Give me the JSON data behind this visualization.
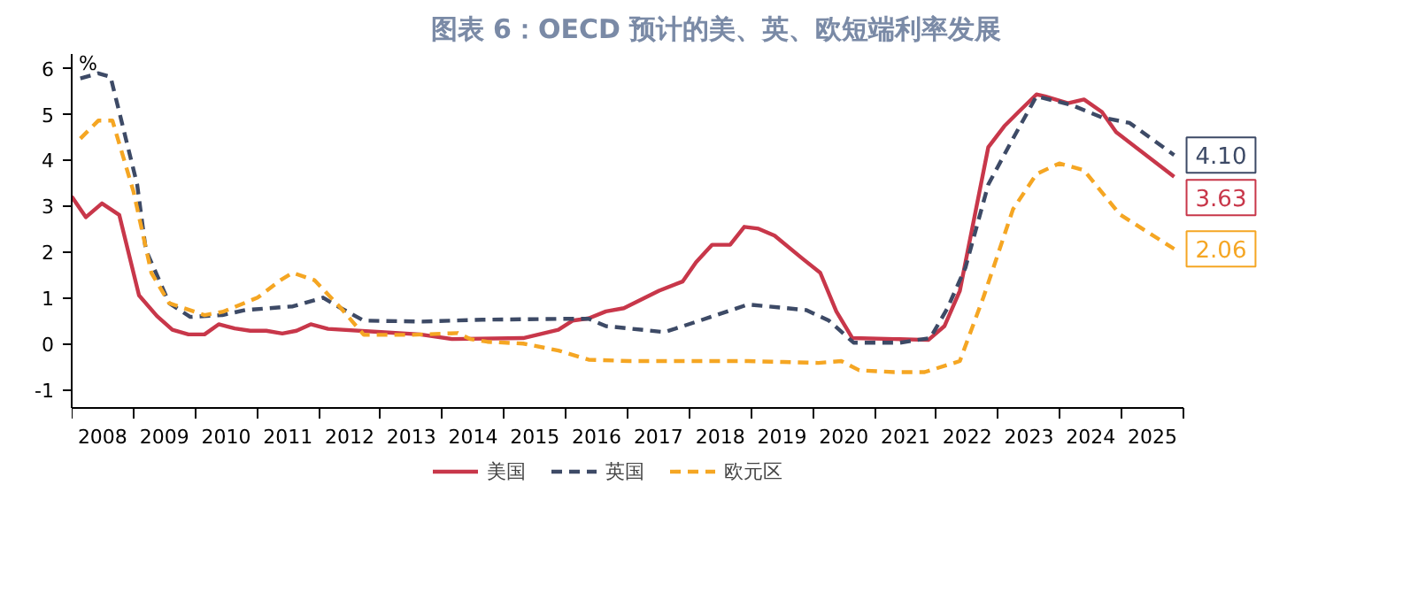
{
  "chart_data": {
    "type": "line",
    "title": "图表 6：OECD 预计的美、英、欧短端利率发展",
    "ylabel": "%",
    "xlim": [
      2008,
      2026
    ],
    "ylim": [
      -1.4,
      6.3
    ],
    "yticks": [
      -1,
      0,
      1,
      2,
      3,
      4,
      5,
      6
    ],
    "xticks": [
      {
        "value": 2008.5,
        "label": "2008"
      },
      {
        "value": 2009.5,
        "label": "2009"
      },
      {
        "value": 2010.5,
        "label": "2010"
      },
      {
        "value": 2011.5,
        "label": "2011"
      },
      {
        "value": 2012.5,
        "label": "2012"
      },
      {
        "value": 2013.5,
        "label": "2013"
      },
      {
        "value": 2014.5,
        "label": "2014"
      },
      {
        "value": 2015.5,
        "label": "2015"
      },
      {
        "value": 2016.5,
        "label": "2016"
      },
      {
        "value": 2017.5,
        "label": "2017"
      },
      {
        "value": 2018.5,
        "label": "2018"
      },
      {
        "value": 2019.5,
        "label": "2019"
      },
      {
        "value": 2020.5,
        "label": "2020"
      },
      {
        "value": 2021.5,
        "label": "2021"
      },
      {
        "value": 2022.5,
        "label": "2022"
      },
      {
        "value": 2023.5,
        "label": "2023"
      },
      {
        "value": 2024.5,
        "label": "2024"
      },
      {
        "value": 2025.5,
        "label": "2025"
      },
      {
        "value": 2008,
        "label": null
      },
      {
        "value": 2009,
        "label": null
      },
      {
        "value": 2010,
        "label": null
      },
      {
        "value": 2011,
        "label": null
      },
      {
        "value": 2012,
        "label": null
      },
      {
        "value": 2013,
        "label": null
      },
      {
        "value": 2014,
        "label": null
      },
      {
        "value": 2015,
        "label": null
      },
      {
        "value": 2016,
        "label": null
      },
      {
        "value": 2017,
        "label": null
      },
      {
        "value": 2018,
        "label": null
      },
      {
        "value": 2019,
        "label": null
      },
      {
        "value": 2020,
        "label": null
      },
      {
        "value": 2021,
        "label": null
      },
      {
        "value": 2022,
        "label": null
      },
      {
        "value": 2023,
        "label": null
      },
      {
        "value": 2024,
        "label": null
      },
      {
        "value": 2025,
        "label": null
      },
      {
        "value": 2026,
        "label": null
      }
    ],
    "grid": false,
    "legend": "bottom",
    "series": [
      {
        "name": "美国",
        "color": "#c8374a",
        "line_style": "solid",
        "x": [
          2008.0,
          2008.23,
          2008.49,
          2008.77,
          2009.09,
          2009.38,
          2009.63,
          2009.89,
          2010.15,
          2010.38,
          2010.64,
          2010.89,
          2011.15,
          2011.41,
          2011.64,
          2011.87,
          2012.15,
          2013.01,
          2013.64,
          2014.16,
          2015.31,
          2015.88,
          2016.11,
          2016.37,
          2016.65,
          2016.94,
          2017.51,
          2017.89,
          2018.11,
          2018.37,
          2018.66,
          2018.89,
          2019.12,
          2019.38,
          2019.83,
          2020.12,
          2020.38,
          2020.64,
          2021.32,
          2021.87,
          2022.13,
          2022.38,
          2022.84,
          2023.1,
          2023.33,
          2023.62,
          2023.76,
          2024.13,
          2024.39,
          2024.68,
          2024.91,
          2025.85
        ],
        "values": [
          3.2,
          2.75,
          3.05,
          2.8,
          1.05,
          0.6,
          0.3,
          0.2,
          0.2,
          0.42,
          0.33,
          0.28,
          0.28,
          0.22,
          0.28,
          0.42,
          0.32,
          0.25,
          0.2,
          0.1,
          0.12,
          0.3,
          0.5,
          0.55,
          0.7,
          0.77,
          1.15,
          1.35,
          1.77,
          2.15,
          2.15,
          2.54,
          2.5,
          2.35,
          1.85,
          1.54,
          0.7,
          0.12,
          0.1,
          0.08,
          0.38,
          1.15,
          4.27,
          4.73,
          5.04,
          5.42,
          5.38,
          5.23,
          5.31,
          5.04,
          4.6,
          3.63
        ],
        "value_labels": [
          null,
          null,
          null,
          null,
          null,
          null,
          null,
          null,
          null,
          null,
          null,
          null,
          null,
          null,
          null,
          null,
          null,
          null,
          null,
          null,
          null,
          null,
          null,
          null,
          null,
          null,
          null,
          null,
          null,
          null,
          null,
          null,
          null,
          null,
          null,
          null,
          null,
          null,
          null,
          null,
          null,
          null,
          null,
          null,
          null,
          null,
          null,
          null,
          null,
          null,
          null,
          "3.63"
        ]
      },
      {
        "name": "英国",
        "color": "#3d4a66",
        "line_style": "dashed",
        "x": [
          2008.14,
          2008.43,
          2008.63,
          2009.06,
          2009.2,
          2009.58,
          2009.92,
          2010.44,
          2010.81,
          2011.58,
          2012.07,
          2012.36,
          2012.73,
          2013.67,
          2014.65,
          2016.08,
          2016.37,
          2016.65,
          2017.6,
          2018.17,
          2018.95,
          2019.89,
          2020.26,
          2020.66,
          2021.41,
          2021.9,
          2022.18,
          2022.47,
          2022.84,
          2023.24,
          2023.62,
          2024.19,
          2024.68,
          2025.13,
          2025.85
        ],
        "values": [
          5.77,
          5.88,
          5.8,
          3.46,
          2.04,
          0.88,
          0.58,
          0.62,
          0.73,
          0.81,
          1.0,
          0.77,
          0.5,
          0.48,
          0.52,
          0.54,
          0.54,
          0.38,
          0.25,
          0.5,
          0.85,
          0.73,
          0.5,
          0.02,
          0.02,
          0.12,
          0.77,
          1.65,
          3.46,
          4.46,
          5.38,
          5.19,
          4.92,
          4.8,
          4.1
        ],
        "value_labels": [
          null,
          null,
          null,
          null,
          null,
          null,
          null,
          null,
          null,
          null,
          null,
          null,
          null,
          null,
          null,
          null,
          null,
          null,
          null,
          null,
          null,
          null,
          null,
          null,
          null,
          null,
          null,
          null,
          null,
          null,
          null,
          null,
          null,
          null,
          "4.10"
        ]
      },
      {
        "name": "欧元区",
        "color": "#f5a623",
        "line_style": "dashed",
        "x": [
          2008.14,
          2008.43,
          2008.66,
          2009.0,
          2009.29,
          2009.58,
          2010.15,
          2010.44,
          2011.01,
          2011.38,
          2011.58,
          2011.93,
          2012.36,
          2012.73,
          2013.5,
          2014.25,
          2014.45,
          2014.73,
          2015.31,
          2015.88,
          2016.37,
          2017.03,
          2018.95,
          2019.52,
          2020.09,
          2020.46,
          2020.75,
          2021.32,
          2021.81,
          2022.38,
          2022.76,
          2023.24,
          2023.62,
          2023.99,
          2024.39,
          2024.97,
          2025.85
        ],
        "values": [
          4.46,
          4.85,
          4.85,
          3.31,
          1.54,
          0.88,
          0.62,
          0.69,
          1.0,
          1.38,
          1.54,
          1.38,
          0.77,
          0.19,
          0.19,
          0.23,
          0.1,
          0.04,
          0.0,
          -0.15,
          -0.35,
          -0.38,
          -0.38,
          -0.4,
          -0.42,
          -0.38,
          -0.58,
          -0.62,
          -0.62,
          -0.38,
          1.0,
          2.92,
          3.69,
          3.92,
          3.77,
          2.81,
          2.06
        ],
        "value_labels": [
          null,
          null,
          null,
          null,
          null,
          null,
          null,
          null,
          null,
          null,
          null,
          null,
          null,
          null,
          null,
          null,
          null,
          null,
          null,
          null,
          null,
          null,
          null,
          null,
          null,
          null,
          null,
          null,
          null,
          null,
          null,
          null,
          null,
          null,
          null,
          null,
          "2.06"
        ]
      }
    ]
  }
}
